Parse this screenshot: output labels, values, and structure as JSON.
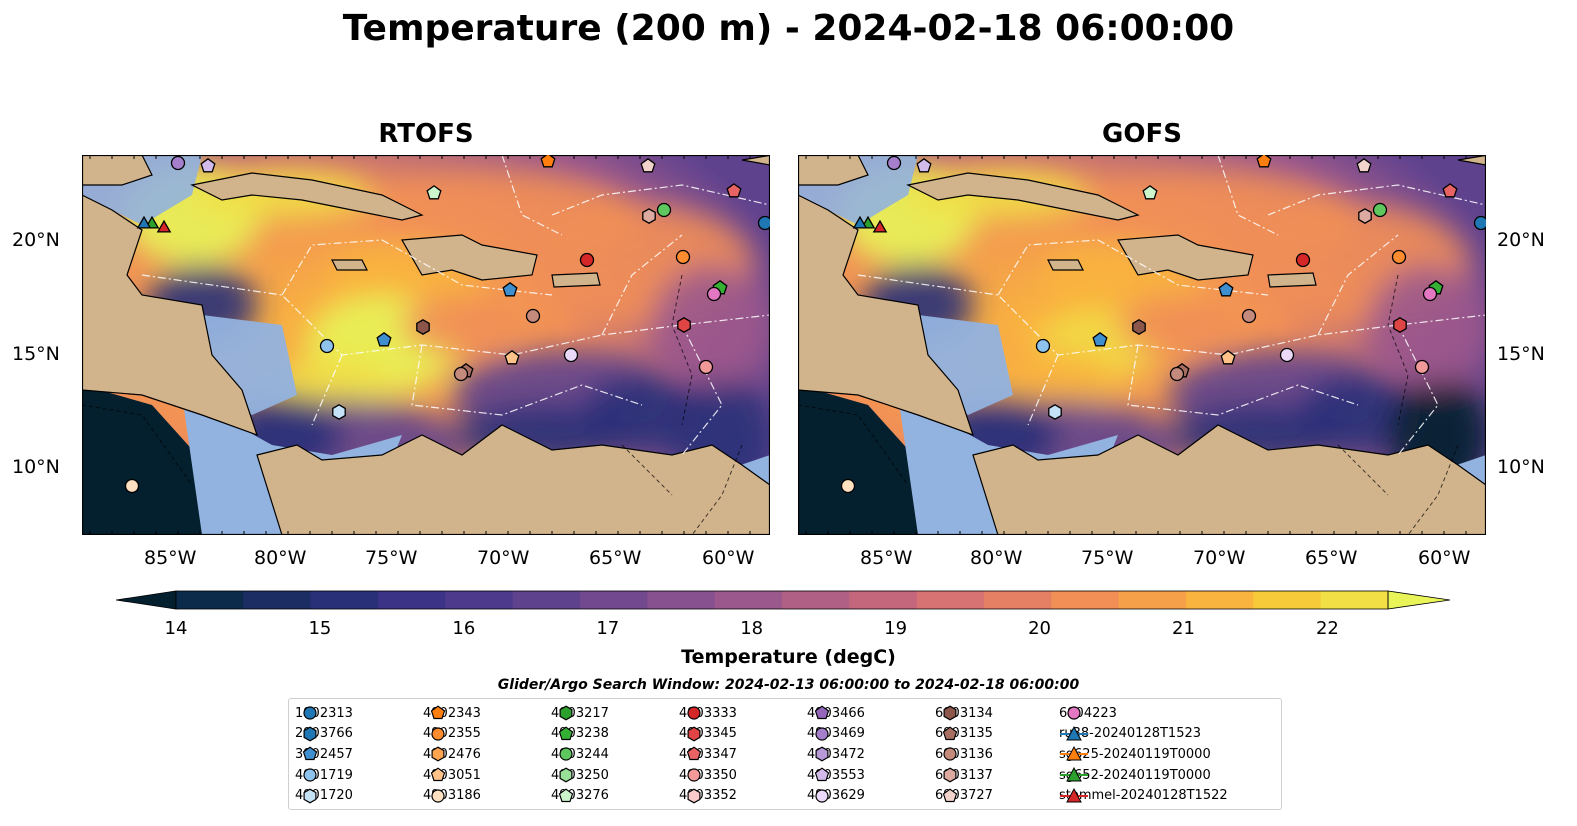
{
  "title": "Temperature (200 m) - 2024-02-18 06:00:00",
  "panels": [
    {
      "title": "RTOFS",
      "warm_core": true
    },
    {
      "title": "GOFS",
      "warm_core": false
    }
  ],
  "lon_ticks": [
    "85°W",
    "80°W",
    "75°W",
    "70°W",
    "65°W",
    "60°W"
  ],
  "lat_ticks": [
    "20°N",
    "15°N",
    "10°N"
  ],
  "colorbar": {
    "ticks": [
      "14",
      "15",
      "16",
      "17",
      "18",
      "19",
      "20",
      "21",
      "22"
    ],
    "label": "Temperature (degC)",
    "colors": [
      "#04202f",
      "#0c2a4a",
      "#1b2d62",
      "#2a3078",
      "#3b3386",
      "#4d3a8c",
      "#5f428e",
      "#72498f",
      "#87508f",
      "#9b588c",
      "#b05f85",
      "#c4677d",
      "#d77372",
      "#e68064",
      "#f18f56",
      "#f7a04a",
      "#f9b43f",
      "#f7ca3a",
      "#f1df45",
      "#e8f458"
    ]
  },
  "search_window": "Glider/Argo Search Window: 2024-02-13 06:00:00 to 2024-02-18 06:00:00",
  "legend": [
    [
      {
        "label": "1902313",
        "marker": "circle",
        "color": "#1f77b4"
      },
      {
        "label": "2903766",
        "marker": "hexagon",
        "color": "#1f77b4"
      },
      {
        "label": "3902457",
        "marker": "pentagon",
        "color": "#3f8fcf"
      },
      {
        "label": "4901719",
        "marker": "circle",
        "color": "#8ec3ee"
      },
      {
        "label": "4901720",
        "marker": "hexagon",
        "color": "#c6e2f7"
      }
    ],
    [
      {
        "label": "4902343",
        "marker": "pentagon",
        "color": "#ff7f0e"
      },
      {
        "label": "4902355",
        "marker": "circle",
        "color": "#ff8c2e"
      },
      {
        "label": "4902476",
        "marker": "hexagon",
        "color": "#ffa552"
      },
      {
        "label": "4903051",
        "marker": "pentagon",
        "color": "#ffc38a"
      },
      {
        "label": "4903186",
        "marker": "circle",
        "color": "#ffe0c0"
      }
    ],
    [
      {
        "label": "4903217",
        "marker": "hexagon",
        "color": "#2ca02c"
      },
      {
        "label": "4903238",
        "marker": "pentagon",
        "color": "#34b134"
      },
      {
        "label": "4903244",
        "marker": "circle",
        "color": "#5ec85e"
      },
      {
        "label": "4903250",
        "marker": "hexagon",
        "color": "#98e098"
      },
      {
        "label": "4903276",
        "marker": "pentagon",
        "color": "#ccf5cc"
      }
    ],
    [
      {
        "label": "4903333",
        "marker": "circle",
        "color": "#d62728"
      },
      {
        "label": "4903345",
        "marker": "hexagon",
        "color": "#e04545"
      },
      {
        "label": "4903347",
        "marker": "pentagon",
        "color": "#e86464"
      },
      {
        "label": "4903350",
        "marker": "circle",
        "color": "#f29a9a"
      },
      {
        "label": "4903352",
        "marker": "hexagon",
        "color": "#fbcaca"
      }
    ],
    [
      {
        "label": "4903466",
        "marker": "pentagon",
        "color": "#9467bd"
      },
      {
        "label": "4903469",
        "marker": "circle",
        "color": "#a57fcc"
      },
      {
        "label": "4903472",
        "marker": "hexagon",
        "color": "#b99ad9"
      },
      {
        "label": "4903553",
        "marker": "pentagon",
        "color": "#d2bbea"
      },
      {
        "label": "4903629",
        "marker": "circle",
        "color": "#ead9f8"
      }
    ],
    [
      {
        "label": "6903134",
        "marker": "hexagon",
        "color": "#8c564b"
      },
      {
        "label": "6903135",
        "marker": "pentagon",
        "color": "#a86e62"
      },
      {
        "label": "6903136",
        "marker": "circle",
        "color": "#c48a7c"
      },
      {
        "label": "6903137",
        "marker": "hexagon",
        "color": "#dcaaa0"
      },
      {
        "label": "6903727",
        "marker": "pentagon",
        "color": "#f3d4cc"
      }
    ],
    [
      {
        "label": "6904223",
        "marker": "circle",
        "color": "#e377c2"
      },
      {
        "label": "ru38-20240128T1523",
        "marker": "line-triangle",
        "color": "#1f77b4"
      },
      {
        "label": "sg625-20240119T0000",
        "marker": "line-triangle",
        "color": "#ff7f0e"
      },
      {
        "label": "sg652-20240119T0000",
        "marker": "line-triangle",
        "color": "#2ca02c"
      },
      {
        "label": "stommel-20240128T1522",
        "marker": "line-triangle",
        "color": "#d62728"
      }
    ]
  ],
  "colors": {
    "land": "#d2b48c",
    "shallow_water": "#92b2df",
    "deep_pacific": "#04202f"
  }
}
